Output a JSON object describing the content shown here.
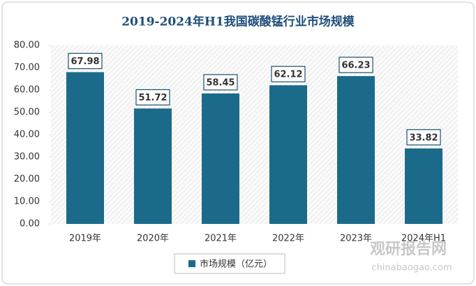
{
  "chart_data": {
    "type": "bar",
    "title": "2019-2024年H1我国碳酸锰行业市场规模",
    "categories": [
      "2019年",
      "2020年",
      "2021年",
      "2022年",
      "2023年",
      "2024年H1"
    ],
    "series": [
      {
        "name": "市场规模（亿元）",
        "color": "#1b6a8a",
        "values": [
          67.98,
          51.72,
          58.45,
          62.12,
          66.23,
          33.82
        ]
      }
    ],
    "ylim": [
      0,
      80
    ],
    "yticks": [
      {
        "value": 0,
        "label": "0.00"
      },
      {
        "value": 10,
        "label": "10.00"
      },
      {
        "value": 20,
        "label": "20.00"
      },
      {
        "value": 30,
        "label": "30.00"
      },
      {
        "value": 40,
        "label": "40.00"
      },
      {
        "value": 50,
        "label": "50.00"
      },
      {
        "value": 60,
        "label": "60.00"
      },
      {
        "value": 70,
        "label": "70.00"
      },
      {
        "value": 80,
        "label": "80.00"
      }
    ],
    "legend": "bottom",
    "annotations": [
      "观研报告网",
      "chinabaogao.com"
    ]
  }
}
